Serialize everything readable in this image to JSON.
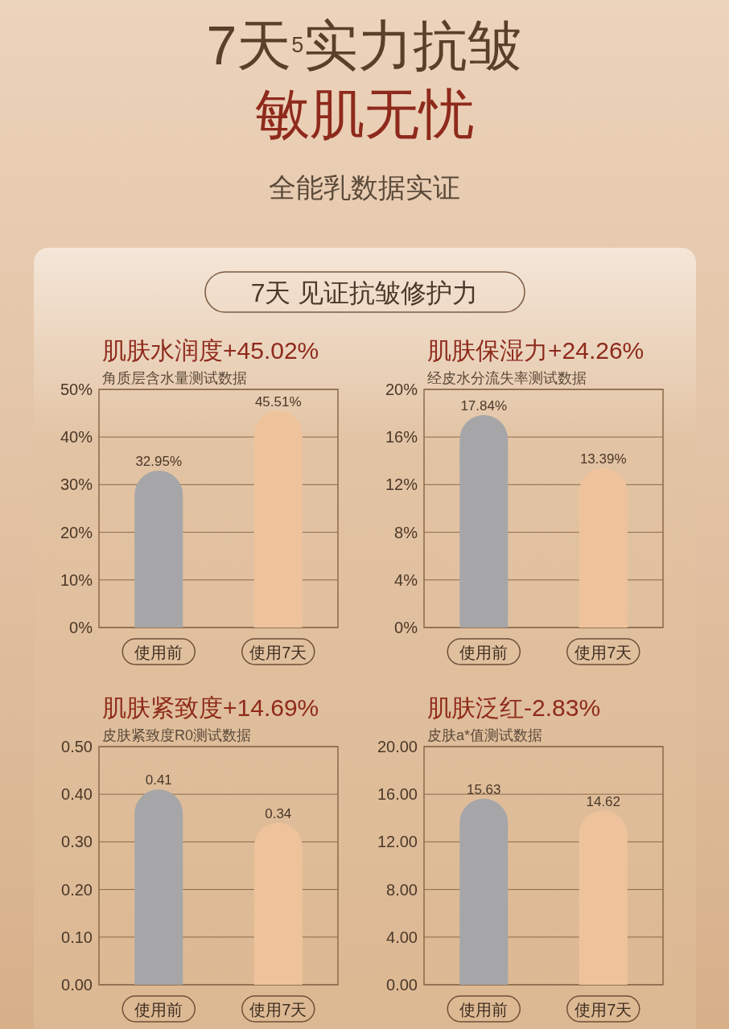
{
  "chart_data": [
    {
      "type": "other",
      "title": "7天$^{5}$实力抗皱",
      "subtitle": "敏肌无忧",
      "annotations": [
        "全能乳数据实证",
        "7天 见证抗皱修护力"
      ]
    },
    {
      "type": "bar",
      "title": "肌肤水润度+45.02%",
      "subtitle": "角质层含水量测试数据",
      "categories": [
        "使用前",
        "使用7天"
      ],
      "values": [
        32.95,
        45.51
      ],
      "value_labels": [
        "32.95%",
        "45.51%"
      ],
      "colors": [
        "#a6a6a8",
        "#eec39b"
      ],
      "ylim": [
        0,
        50
      ],
      "yticks": [
        {
          "value": 0,
          "label": "0%"
        },
        {
          "value": 10,
          "label": "10%"
        },
        {
          "value": 20,
          "label": "20%"
        },
        {
          "value": 30,
          "label": "30%"
        },
        {
          "value": 40,
          "label": "40%"
        },
        {
          "value": 50,
          "label": "50%"
        }
      ],
      "grid": "y"
    },
    {
      "type": "bar",
      "title": "肌肤保湿力+24.26%",
      "subtitle": "经皮水分流失率测试数据",
      "categories": [
        "使用前",
        "使用7天"
      ],
      "values": [
        17.84,
        13.39
      ],
      "value_labels": [
        "17.84%",
        "13.39%"
      ],
      "colors": [
        "#a6a6a8",
        "#eec39b"
      ],
      "ylim": [
        0,
        20
      ],
      "yticks": [
        {
          "value": 0,
          "label": "0%"
        },
        {
          "value": 4,
          "label": "4%"
        },
        {
          "value": 8,
          "label": "8%"
        },
        {
          "value": 12,
          "label": "12%"
        },
        {
          "value": 16,
          "label": "16%"
        },
        {
          "value": 20,
          "label": "20%"
        }
      ],
      "grid": "y"
    },
    {
      "type": "bar",
      "title": "肌肤紧致度+14.69%",
      "subtitle": "皮肤紧致度R0测试数据",
      "categories": [
        "使用前",
        "使用7天"
      ],
      "values": [
        0.41,
        0.34
      ],
      "value_labels": [
        "0.41",
        "0.34"
      ],
      "colors": [
        "#a6a6a8",
        "#eec39b"
      ],
      "ylim": [
        0,
        0.5
      ],
      "yticks": [
        {
          "value": 0,
          "label": "0.00"
        },
        {
          "value": 0.1,
          "label": "0.10"
        },
        {
          "value": 0.2,
          "label": "0.20"
        },
        {
          "value": 0.3,
          "label": "0.30"
        },
        {
          "value": 0.4,
          "label": "0.40"
        },
        {
          "value": 0.5,
          "label": "0.50"
        }
      ],
      "grid": "y"
    },
    {
      "type": "bar",
      "title": "肌肤泛红-2.83%",
      "subtitle": "皮肤a*值测试数据",
      "categories": [
        "使用前",
        "使用7天"
      ],
      "values": [
        15.63,
        14.62
      ],
      "value_labels": [
        "15.63",
        "14.62"
      ],
      "colors": [
        "#a6a6a8",
        "#eec39b"
      ],
      "ylim": [
        0,
        20
      ],
      "yticks": [
        {
          "value": 0,
          "label": "0.00"
        },
        {
          "value": 4,
          "label": "4.00"
        },
        {
          "value": 8,
          "label": "8.00"
        },
        {
          "value": 12,
          "label": "12.00"
        },
        {
          "value": 16,
          "label": "16.00"
        },
        {
          "value": 20,
          "label": "20.00"
        }
      ],
      "grid": "y"
    }
  ]
}
